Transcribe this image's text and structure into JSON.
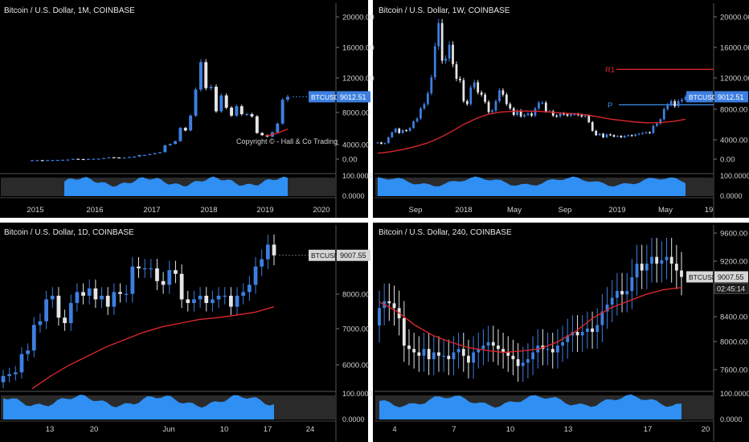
{
  "colors": {
    "background": "#000000",
    "divider": "#ffffff",
    "up_candle": "#3d7fe0",
    "down_candle": "#e6e6e6",
    "ma_line": "#d9262c",
    "level_R1": "#d9262c",
    "level_P": "#3d8fea",
    "axis_text": "#d0d0d0",
    "oscillator_fill": "#2f8ff3",
    "oscillator_band": "#2a2a2a"
  },
  "chart_data": [
    {
      "type": "candlestick",
      "title": "Bitcoin / U.S. Dollar, 1M, COINBASE",
      "price_axis": {
        "ticks": [
          "20000.00",
          "16000.00",
          "12000.00",
          "8000.00",
          "4000.00",
          "0.00"
        ],
        "range": [
          -1500,
          21500
        ]
      },
      "time_axis": {
        "ticks": [
          "2015",
          "2016",
          "2017",
          "2018",
          "2019",
          "2020"
        ]
      },
      "price_label": {
        "symbol": "BTCUSD",
        "value": "9012.51",
        "style": "blue"
      },
      "annotation": "Copyright © - Hall & Co Trading",
      "closes": [
        230,
        250,
        240,
        260,
        270,
        280,
        300,
        330,
        430,
        400,
        380,
        420,
        440,
        450,
        530,
        640,
        620,
        570,
        610,
        700,
        740,
        960,
        970,
        1080,
        1220,
        1350,
        2300,
        2480,
        2870,
        4700,
        4350,
        6400,
        10000,
        13800,
        10200,
        10400,
        7000,
        9200,
        7500,
        6400,
        7700,
        6600,
        6600,
        6300,
        4000,
        3700,
        3500,
        4100,
        5300,
        8600,
        9012
      ],
      "ma_values": [
        3600,
        3700,
        3850,
        4050,
        4300,
        4550
      ]
    },
    {
      "type": "candlestick",
      "title": "Bitcoin / U.S. Dollar, 1W, COINBASE",
      "price_axis": {
        "ticks": [
          "20000.00",
          "16000.00",
          "12000.00",
          "8000.00",
          "4000.00",
          "0.00"
        ],
        "range": [
          -1500,
          21500
        ]
      },
      "time_axis": {
        "ticks": [
          "Sep",
          "2018",
          "May",
          "Sep",
          "2019",
          "May",
          "19"
        ]
      },
      "price_label": {
        "symbol": "BTCUSD",
        "value": "9012.51",
        "style": "blue"
      },
      "levels": [
        {
          "label": "R1",
          "value": 12800
        },
        {
          "label": "P",
          "value": 7900
        }
      ],
      "closes": [
        2700,
        2500,
        2600,
        3400,
        4100,
        4600,
        4000,
        4400,
        4300,
        4700,
        5600,
        6000,
        7400,
        8000,
        9500,
        11700,
        16000,
        19200,
        14000,
        14300,
        16200,
        13500,
        11500,
        11300,
        8400,
        8000,
        10300,
        11000,
        9600,
        9300,
        8300,
        6900,
        7100,
        8400,
        9900,
        9300,
        8000,
        7400,
        6500,
        7100,
        6300,
        6500,
        6700,
        6400,
        7400,
        8200,
        8200,
        7000,
        7000,
        6400,
        6300,
        6700,
        6600,
        6400,
        6600,
        6600,
        6500,
        6300,
        6400,
        5500,
        4300,
        3700,
        3900,
        3400,
        3800,
        3700,
        3500,
        3600,
        3400,
        3600,
        3700,
        3600,
        3800,
        3900,
        4000,
        4100,
        4000,
        5000,
        5300,
        5900,
        7300,
        7900,
        8400,
        7700,
        8400,
        8600,
        9012
      ],
      "ma_values": [
        1200,
        1400,
        1700,
        2100,
        2600,
        3300,
        4200,
        5200,
        6000,
        6600,
        6900,
        7000,
        7050,
        7000,
        6900,
        6750,
        6650,
        6500,
        6200,
        5900,
        5700,
        5500,
        5400,
        5450,
        5600,
        5900
      ]
    },
    {
      "type": "candlestick",
      "title": "Bitcoin / U.S. Dollar, 1D, COINBASE",
      "price_axis": {
        "ticks": [
          "9000.00",
          "8000.00",
          "7000.00",
          "6000.00"
        ],
        "range": [
          5300,
          9750
        ]
      },
      "time_axis": {
        "ticks": [
          "13",
          "20",
          "Jun",
          "10",
          "17",
          "24"
        ]
      },
      "price_label": {
        "symbol": "BTCUSD",
        "value": "9007.55",
        "style": "grey"
      },
      "closes": [
        5700,
        5750,
        5800,
        6300,
        6400,
        7100,
        7200,
        7800,
        7900,
        7300,
        7150,
        7700,
        8000,
        7900,
        8100,
        7800,
        7900,
        7600,
        8000,
        7950,
        7950,
        8700,
        8650,
        8650,
        8650,
        8300,
        8200,
        8600,
        8500,
        7800,
        7700,
        7800,
        7900,
        7700,
        7800,
        7900,
        7900,
        7600,
        7900,
        8000,
        8200,
        8700,
        8900,
        9300,
        9007
      ],
      "ma_values": [
        5350,
        5700,
        6000,
        6250,
        6500,
        6700,
        6900,
        7050,
        7150,
        7250,
        7300,
        7370,
        7450,
        7600
      ]
    },
    {
      "type": "candlestick",
      "title": "Bitcoin / U.S. Dollar, 240, COINBASE",
      "price_axis": {
        "ticks": [
          "9600.00",
          "9200.00",
          "8800.00",
          "8400.00",
          "8000.00",
          "7600.00"
        ],
        "range": [
          7340,
          9720
        ]
      },
      "time_axis": {
        "ticks": [
          "4",
          "7",
          "10",
          "13",
          "17",
          "20"
        ]
      },
      "price_label": {
        "symbol": "BTCUSD",
        "value": "9007.55",
        "style": "grey"
      },
      "countdown": "02:45:14",
      "closes": [
        8550,
        8650,
        8620,
        8550,
        8400,
        8000,
        7950,
        7900,
        7850,
        7950,
        7800,
        7900,
        7850,
        7850,
        7800,
        7900,
        7950,
        7850,
        7750,
        7900,
        7950,
        8000,
        8050,
        8000,
        7950,
        7900,
        7850,
        7800,
        7700,
        7750,
        7800,
        7900,
        8000,
        7950,
        7950,
        7900,
        8000,
        8050,
        8150,
        8200,
        8150,
        8200,
        8250,
        8200,
        8300,
        8500,
        8600,
        8700,
        8800,
        8750,
        8800,
        9000,
        9200,
        9100,
        9200,
        9300,
        9200,
        9250,
        9300,
        9200,
        9100,
        9007
      ],
      "ma_values": [
        8640,
        8500,
        8300,
        8150,
        8050,
        7970,
        7930,
        7900,
        7920,
        7950,
        8050,
        8200,
        8400,
        8550,
        8650,
        8750,
        8820,
        8850
      ]
    }
  ],
  "oscillator_ticks": {
    "top": "100.0000",
    "bottom": "0.0000"
  }
}
